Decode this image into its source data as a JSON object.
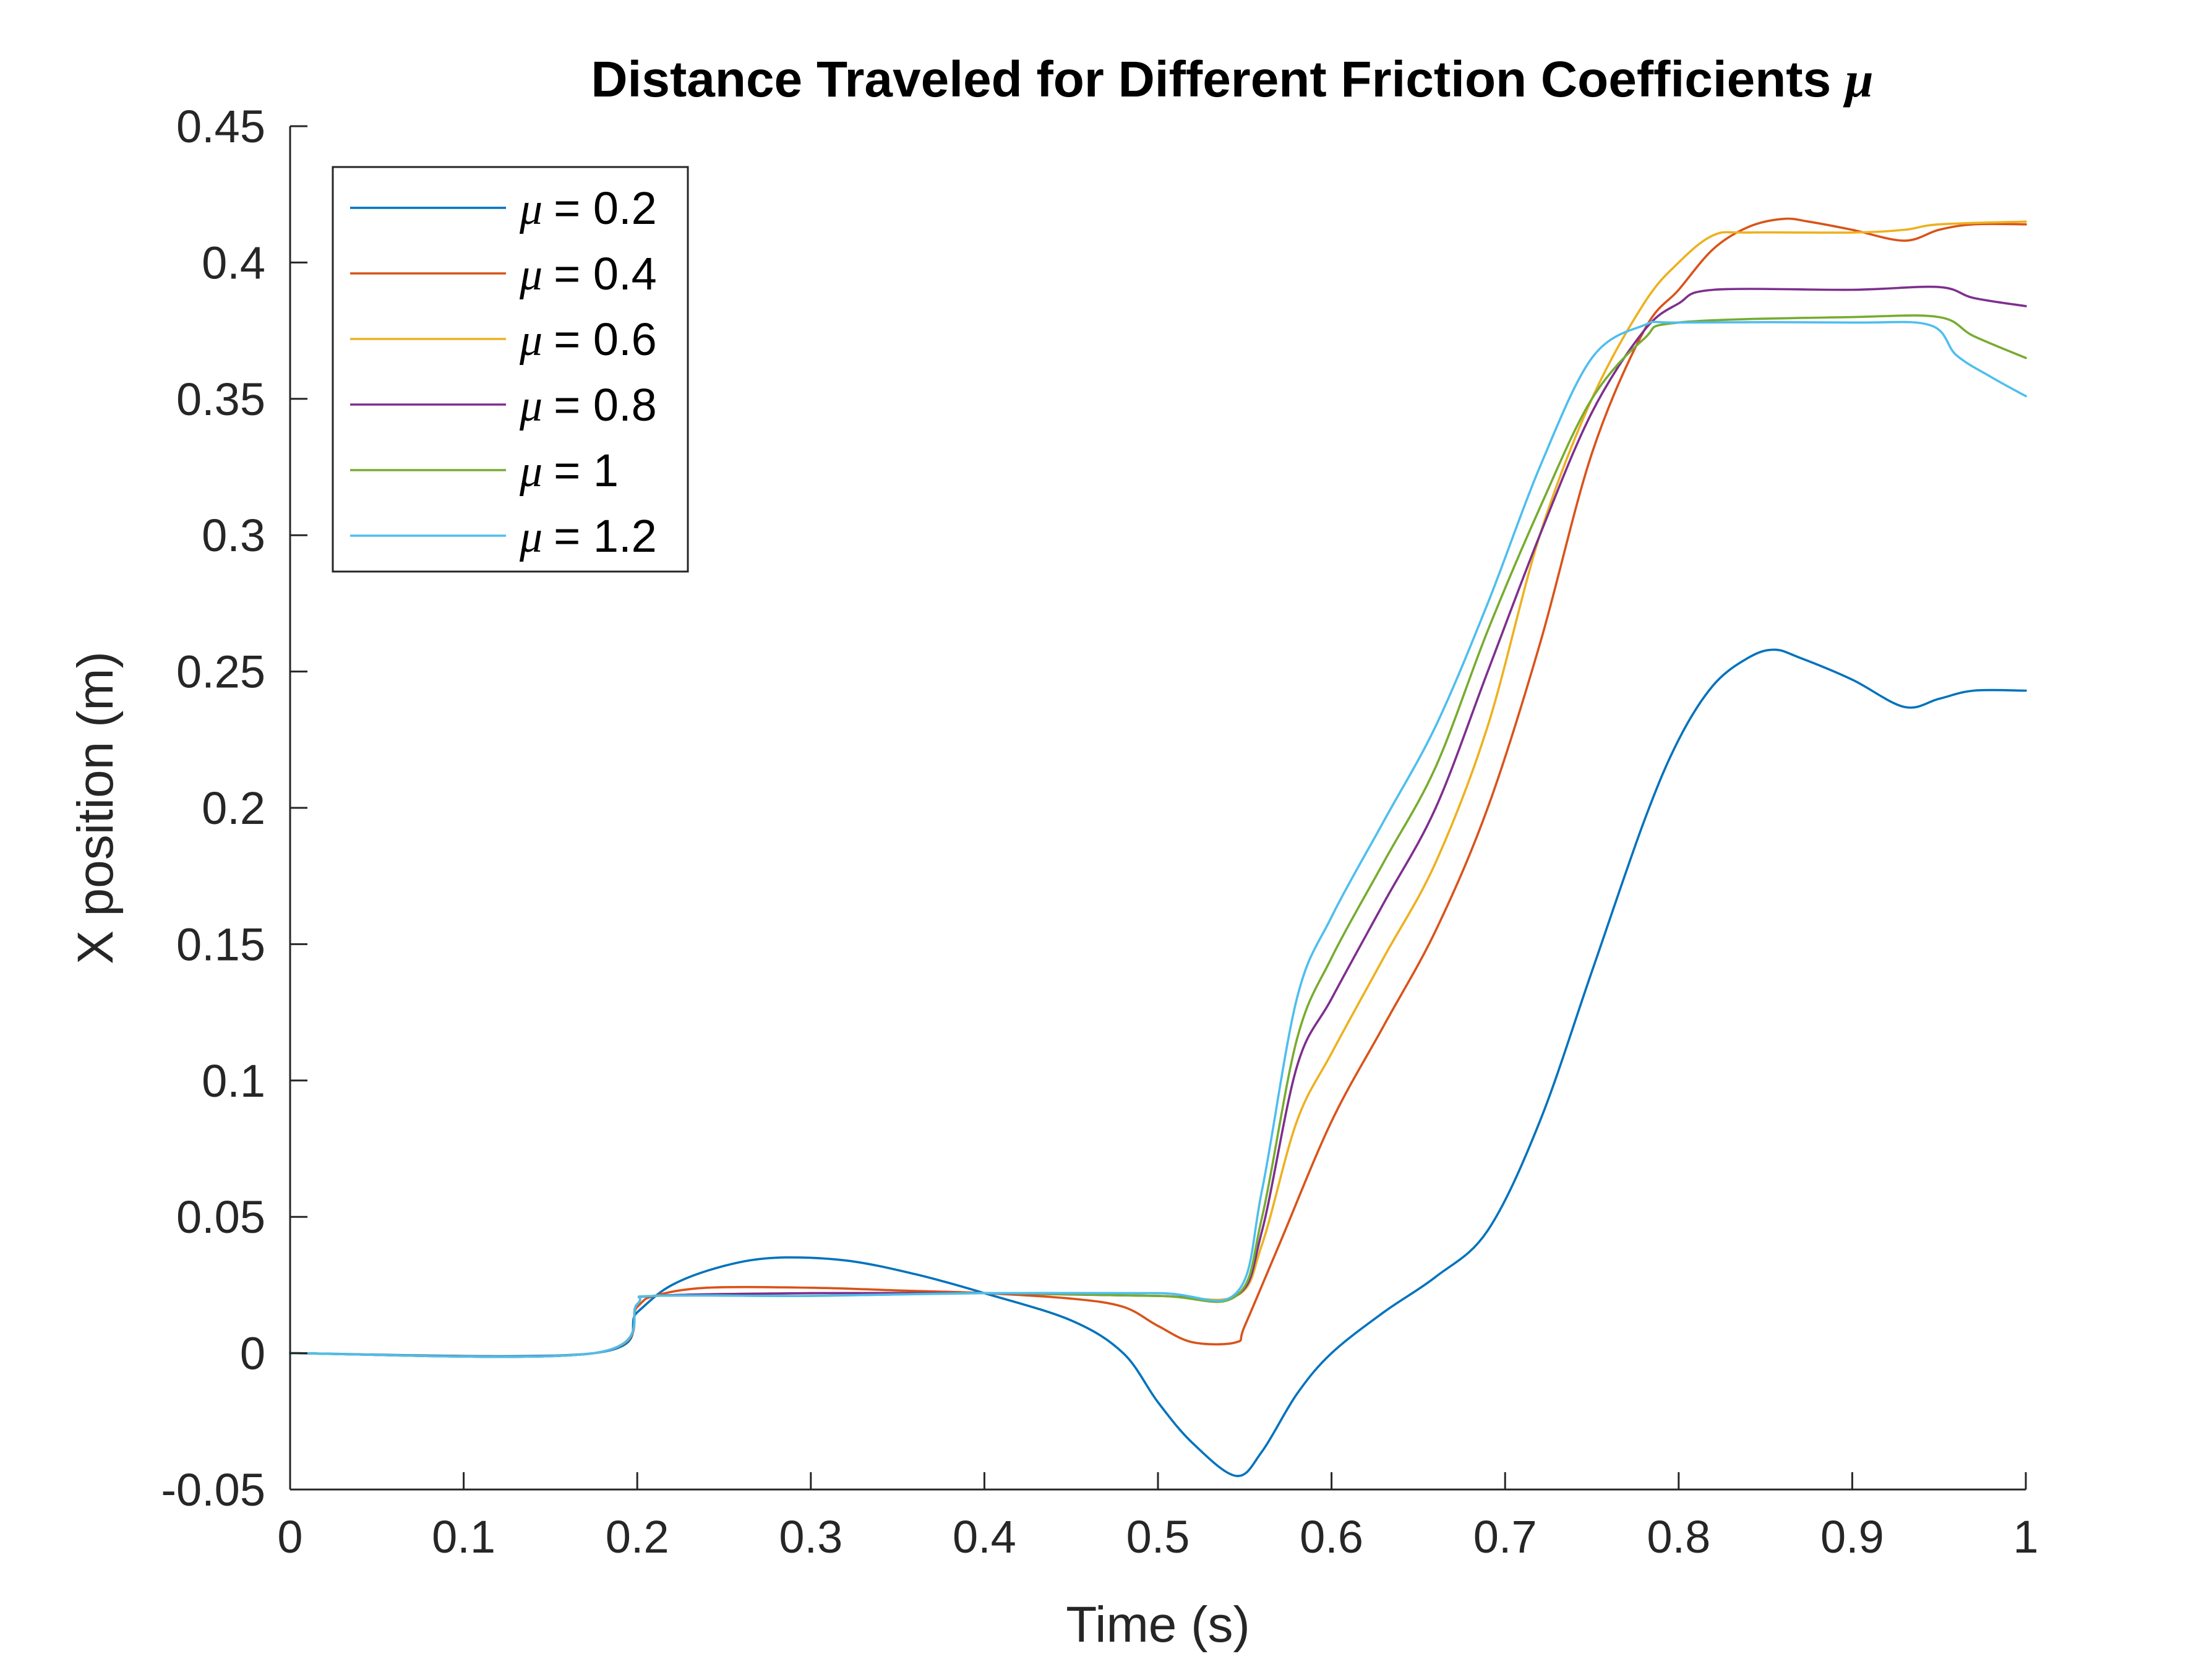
{
  "chart_data": {
    "type": "line",
    "title": "Distance Traveled for Different Friction Coefficients",
    "title_symbol": "μ",
    "xlabel": "Time (s)",
    "ylabel": "X position (m)",
    "xlim": [
      0,
      1
    ],
    "ylim": [
      -0.05,
      0.45
    ],
    "x_ticks": [
      "0",
      "0.1",
      "0.2",
      "0.3",
      "0.4",
      "0.5",
      "0.6",
      "0.7",
      "0.8",
      "0.9",
      "1"
    ],
    "y_ticks": [
      "-0.05",
      "0",
      "0.05",
      "0.1",
      "0.15",
      "0.2",
      "0.25",
      "0.3",
      "0.35",
      "0.4",
      "0.45"
    ],
    "grid": false,
    "legend_position": "top-left",
    "series": [
      {
        "name_symbol": "μ",
        "name_value": "= 0.2",
        "color": "#0072BD",
        "x": [
          0,
          0.175,
          0.2,
          0.22,
          0.25,
          0.28,
          0.32,
          0.36,
          0.4,
          0.45,
          0.48,
          0.5,
          0.52,
          0.545,
          0.56,
          0.58,
          0.6,
          0.63,
          0.66,
          0.69,
          0.72,
          0.75,
          0.78,
          0.8,
          0.82,
          0.84,
          0.855,
          0.87,
          0.9,
          0.93,
          0.95,
          0.97,
          1.0
        ],
        "y": [
          0,
          0,
          0.015,
          0.025,
          0.032,
          0.035,
          0.034,
          0.029,
          0.022,
          0.012,
          0.0,
          -0.018,
          -0.033,
          -0.045,
          -0.036,
          -0.015,
          0.0,
          0.015,
          0.028,
          0.045,
          0.085,
          0.14,
          0.195,
          0.225,
          0.245,
          0.255,
          0.258,
          0.255,
          0.247,
          0.237,
          0.24,
          0.243,
          0.243
        ]
      },
      {
        "name_symbol": "μ",
        "name_value": "= 0.4",
        "color": "#D95319",
        "x": [
          0,
          0.175,
          0.2,
          0.21,
          0.24,
          0.3,
          0.35,
          0.4,
          0.45,
          0.48,
          0.5,
          0.52,
          0.545,
          0.55,
          0.57,
          0.6,
          0.63,
          0.66,
          0.69,
          0.72,
          0.75,
          0.78,
          0.8,
          0.82,
          0.84,
          0.86,
          0.875,
          0.9,
          0.93,
          0.95,
          0.97,
          1.0
        ],
        "y": [
          0,
          0,
          0.017,
          0.021,
          0.024,
          0.024,
          0.023,
          0.022,
          0.02,
          0.017,
          0.01,
          0.004,
          0.004,
          0.01,
          0.04,
          0.085,
          0.12,
          0.155,
          0.2,
          0.26,
          0.33,
          0.375,
          0.39,
          0.405,
          0.413,
          0.416,
          0.415,
          0.412,
          0.408,
          0.412,
          0.414,
          0.414
        ]
      },
      {
        "name_symbol": "μ",
        "name_value": "= 0.6",
        "color": "#EDB120",
        "x": [
          0,
          0.175,
          0.2,
          0.21,
          0.3,
          0.4,
          0.5,
          0.545,
          0.56,
          0.58,
          0.6,
          0.63,
          0.66,
          0.69,
          0.72,
          0.75,
          0.78,
          0.8,
          0.82,
          0.84,
          0.9,
          0.93,
          0.95,
          1.0
        ],
        "y": [
          0,
          0,
          0.018,
          0.021,
          0.022,
          0.022,
          0.021,
          0.021,
          0.04,
          0.085,
          0.11,
          0.145,
          0.18,
          0.23,
          0.3,
          0.35,
          0.385,
          0.4,
          0.41,
          0.411,
          0.411,
          0.412,
          0.414,
          0.415
        ]
      },
      {
        "name_symbol": "μ",
        "name_value": "= 0.8",
        "color": "#7E2F8E",
        "x": [
          0,
          0.175,
          0.2,
          0.21,
          0.3,
          0.4,
          0.5,
          0.545,
          0.56,
          0.58,
          0.6,
          0.63,
          0.66,
          0.69,
          0.72,
          0.75,
          0.78,
          0.8,
          0.82,
          0.9,
          0.95,
          0.97,
          1.0
        ],
        "y": [
          0,
          0,
          0.018,
          0.021,
          0.022,
          0.022,
          0.021,
          0.021,
          0.045,
          0.105,
          0.13,
          0.165,
          0.2,
          0.25,
          0.3,
          0.345,
          0.375,
          0.385,
          0.39,
          0.39,
          0.391,
          0.387,
          0.384
        ]
      },
      {
        "name_symbol": "μ",
        "name_value": "= 1",
        "color": "#77AC30",
        "x": [
          0,
          0.175,
          0.2,
          0.21,
          0.3,
          0.4,
          0.5,
          0.545,
          0.56,
          0.58,
          0.6,
          0.63,
          0.66,
          0.69,
          0.72,
          0.75,
          0.78,
          0.8,
          0.9,
          0.95,
          0.97,
          1.0
        ],
        "y": [
          0,
          0,
          0.018,
          0.021,
          0.021,
          0.022,
          0.021,
          0.021,
          0.05,
          0.115,
          0.145,
          0.18,
          0.215,
          0.265,
          0.31,
          0.35,
          0.372,
          0.378,
          0.38,
          0.38,
          0.373,
          0.365
        ]
      },
      {
        "name_symbol": "μ",
        "name_value": "= 1.2",
        "color": "#4DBEEE",
        "x": [
          0,
          0.175,
          0.2,
          0.21,
          0.3,
          0.4,
          0.5,
          0.545,
          0.56,
          0.58,
          0.6,
          0.63,
          0.66,
          0.69,
          0.72,
          0.75,
          0.78,
          0.8,
          0.9,
          0.945,
          0.96,
          0.98,
          1.0
        ],
        "y": [
          0,
          0,
          0.018,
          0.021,
          0.021,
          0.022,
          0.022,
          0.022,
          0.06,
          0.13,
          0.16,
          0.195,
          0.23,
          0.275,
          0.325,
          0.365,
          0.377,
          0.378,
          0.378,
          0.377,
          0.366,
          0.358,
          0.351
        ]
      }
    ]
  }
}
